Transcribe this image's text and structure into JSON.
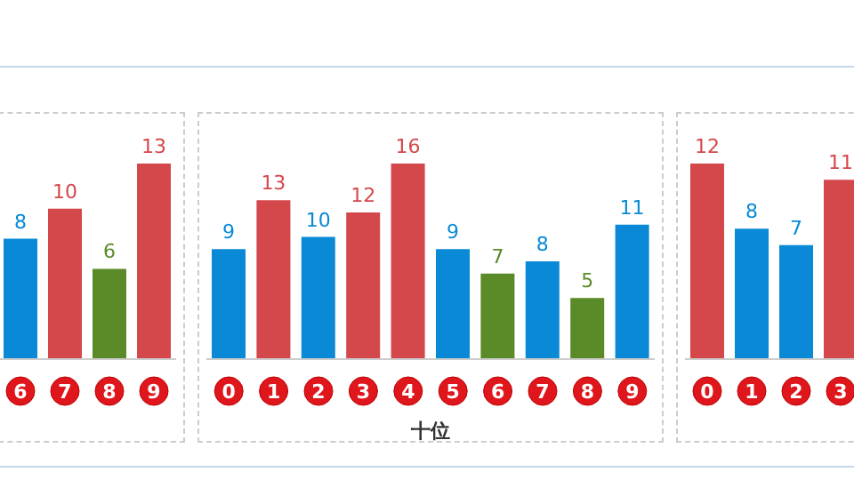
{
  "chart_data": [
    {
      "type": "bar",
      "categories": [
        "6",
        "7",
        "8",
        "9"
      ],
      "values": [
        8,
        10,
        6,
        13
      ],
      "colors": [
        "#0a8ad6",
        "#d4474b",
        "#5b8a28",
        "#d4474b"
      ],
      "data_labels": true
    },
    {
      "type": "bar",
      "xlabel": "十位",
      "categories": [
        "0",
        "1",
        "2",
        "3",
        "4",
        "5",
        "6",
        "7",
        "8",
        "9"
      ],
      "values": [
        9,
        13,
        10,
        12,
        16,
        9,
        7,
        8,
        5,
        11
      ],
      "colors": [
        "#0a8ad6",
        "#d4474b",
        "#0a8ad6",
        "#d4474b",
        "#d4474b",
        "#0a8ad6",
        "#5b8a28",
        "#0a8ad6",
        "#5b8a28",
        "#0a8ad6"
      ],
      "data_labels": true
    },
    {
      "type": "bar",
      "categories": [
        "0",
        "1",
        "2",
        "3"
      ],
      "values": [
        12,
        8,
        7,
        11
      ],
      "colors": [
        "#d4474b",
        "#0a8ad6",
        "#0a8ad6",
        "#d4474b"
      ],
      "data_labels": true
    }
  ]
}
